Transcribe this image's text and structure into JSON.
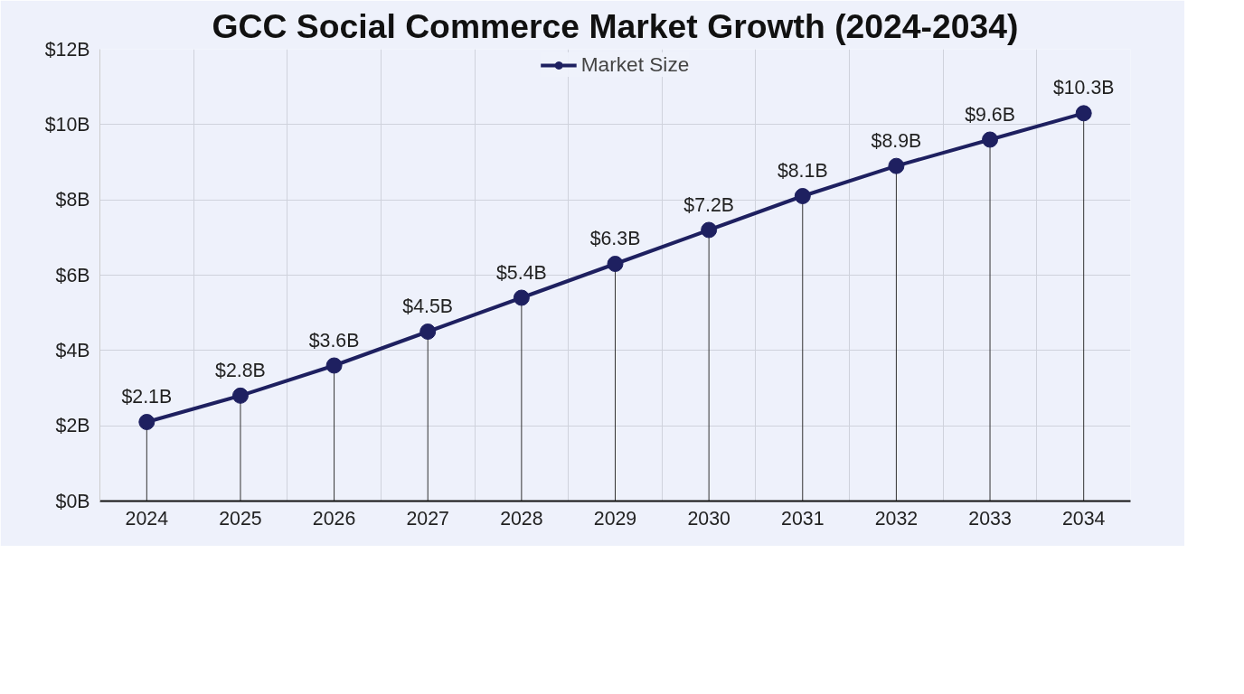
{
  "chart_data": {
    "type": "line",
    "title": "GCC Social Commerce Market Growth (2024-2034)",
    "categories": [
      "2024",
      "2025",
      "2026",
      "2027",
      "2028",
      "2029",
      "2030",
      "2031",
      "2032",
      "2033",
      "2034"
    ],
    "series": [
      {
        "name": "Market Size",
        "color": "#1e2060",
        "values": [
          2.1,
          2.8,
          3.6,
          4.5,
          5.4,
          6.3,
          7.2,
          8.1,
          8.9,
          9.6,
          10.3
        ],
        "value_labels": [
          "$2.1B",
          "$2.8B",
          "$3.6B",
          "$4.5B",
          "$5.4B",
          "$6.3B",
          "$7.2B",
          "$8.1B",
          "$8.9B",
          "$9.6B",
          "$10.3B"
        ]
      }
    ],
    "ylim": [
      0,
      12
    ],
    "yticks": [
      {
        "value": 0,
        "label": "$0B"
      },
      {
        "value": 2,
        "label": "$2B"
      },
      {
        "value": 4,
        "label": "$4B"
      },
      {
        "value": 6,
        "label": "$6B"
      },
      {
        "value": 8,
        "label": "$8B"
      },
      {
        "value": 10,
        "label": "$10B"
      },
      {
        "value": 12,
        "label": "$12B"
      }
    ],
    "grid": true,
    "legend": "top",
    "marker": "circle",
    "line_style": "solid"
  }
}
